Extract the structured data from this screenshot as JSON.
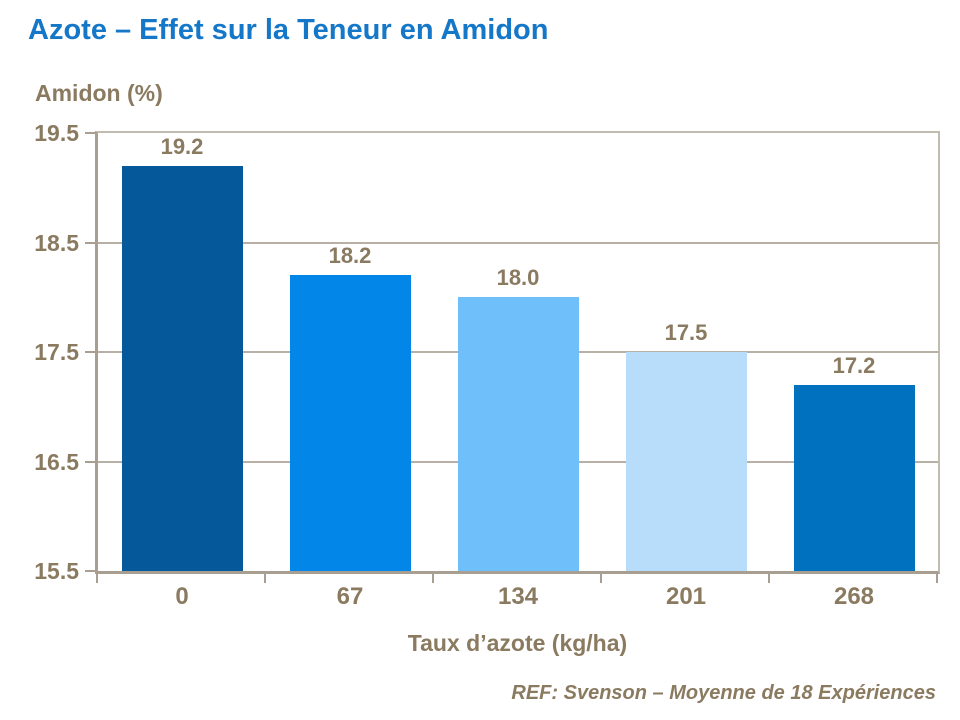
{
  "page": {
    "title": "Azote – Effet sur la Teneur en Amidon"
  },
  "chart_data": {
    "type": "bar",
    "title": "Azote – Effet sur la Teneur en Amidon",
    "ylabel": "Amidon (%)",
    "xlabel": "Taux d’azote (kg/ha)",
    "categories": [
      "0",
      "67",
      "134",
      "201",
      "268"
    ],
    "values": [
      19.2,
      18.2,
      18.0,
      17.5,
      17.2
    ],
    "value_labels": [
      "19.2",
      "18.2",
      "18.0",
      "17.5",
      "17.2"
    ],
    "bar_colors": [
      "#05599B",
      "#0287E8",
      "#6FBFFB",
      "#B8DDFB",
      "#0071BE"
    ],
    "ylim": [
      15.5,
      19.5
    ],
    "yticks": [
      15.5,
      16.5,
      17.5,
      18.5,
      19.5
    ],
    "ytick_labels": [
      "15.5",
      "16.5",
      "17.5",
      "18.5",
      "19.5"
    ],
    "grid": true,
    "legend": false,
    "footnote": "REF: Svenson – Moyenne de 18 Expériences"
  },
  "colors": {
    "title": "#1577C8",
    "text": "#8A7A60",
    "grid": "#B8B0A4",
    "border": "#C2BBB0",
    "axis": "#A89F92",
    "background": "#FFFFFF"
  }
}
